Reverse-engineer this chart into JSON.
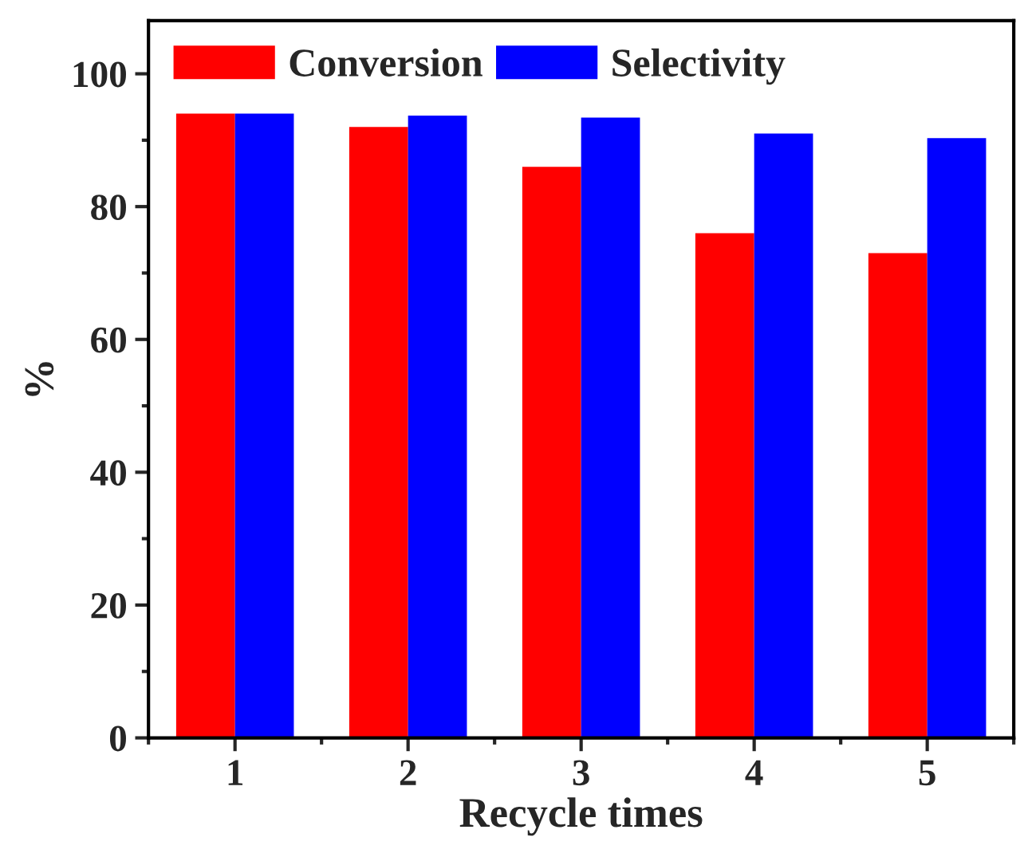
{
  "chart_data": {
    "type": "bar",
    "xlabel": "Recycle times",
    "ylabel": "%",
    "categories": [
      "1",
      "2",
      "3",
      "4",
      "5"
    ],
    "series": [
      {
        "name": "Conversion",
        "color": "#ff0000",
        "values": [
          94,
          92,
          86,
          76,
          73
        ]
      },
      {
        "name": "Selectivity",
        "color": "#0000ff",
        "values": [
          94,
          93.7,
          93.4,
          91,
          90.3
        ]
      }
    ],
    "ylim": [
      0,
      108
    ],
    "yticks": [
      0,
      20,
      40,
      60,
      80,
      100
    ],
    "grid": false,
    "legend": "top left"
  }
}
